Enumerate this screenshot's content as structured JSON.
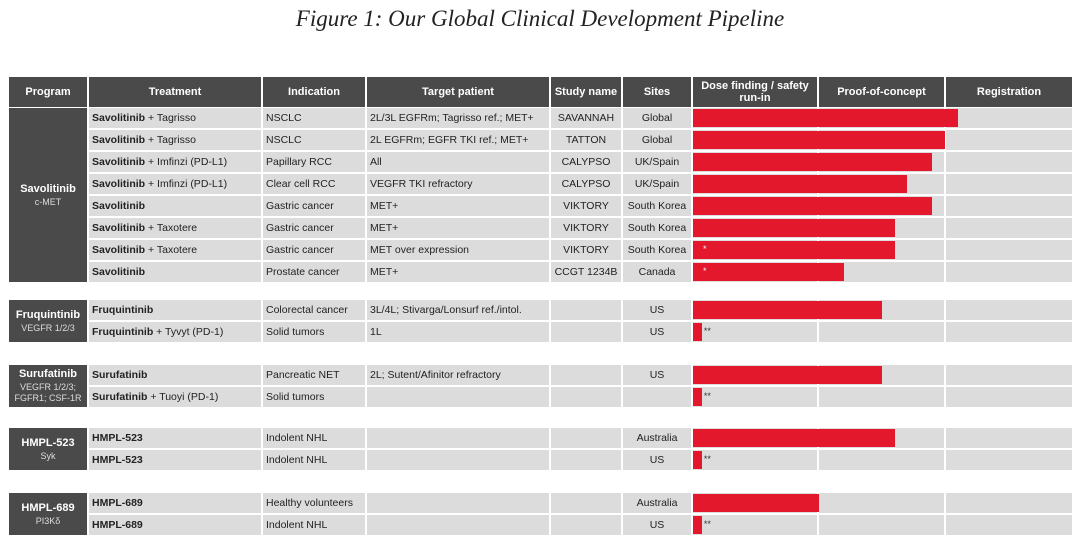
{
  "title": "Figure 1: Our Global Clinical Development Pipeline",
  "chart_data": {
    "type": "table",
    "columns": [
      "Program",
      "Treatment",
      "Indication",
      "Target patient",
      "Study name",
      "Sites",
      "Dose finding / safety run-in",
      "Proof-of-concept",
      "Registration"
    ],
    "phases": [
      "Dose finding / safety run-in",
      "Proof-of-concept",
      "Registration"
    ],
    "bar_color": "#e3182d",
    "groups": [
      {
        "program": "Savolitinib",
        "target": "c-MET",
        "rows": [
          {
            "drug": "Savolitinib",
            "combo": " + Tagrisso",
            "indication": "NSCLC",
            "patient": "2L/3L EGFRm; Tagrisso ref.; MET+",
            "study": "SAVANNAH",
            "sites": "Global",
            "progress": 2.1,
            "mark": ""
          },
          {
            "drug": "Savolitinib",
            "combo": " + Tagrisso",
            "indication": "NSCLC",
            "patient": "2L EGFRm; EGFR TKI ref.; MET+",
            "study": "TATTON",
            "sites": "Global",
            "progress": 2.0,
            "mark": ""
          },
          {
            "drug": "Savolitinib",
            "combo": " + Imfinzi (PD-L1)",
            "indication": "Papillary RCC",
            "patient": "All",
            "study": "CALYPSO",
            "sites": "UK/Spain",
            "progress": 1.9,
            "mark": ""
          },
          {
            "drug": "Savolitinib",
            "combo": " + Imfinzi (PD-L1)",
            "indication": "Clear cell RCC",
            "patient": "VEGFR TKI refractory",
            "study": "CALYPSO",
            "sites": "UK/Spain",
            "progress": 1.7,
            "mark": ""
          },
          {
            "drug": "Savolitinib",
            "combo": "",
            "indication": "Gastric cancer",
            "patient": "MET+",
            "study": "VIKTORY",
            "sites": "South Korea",
            "progress": 1.9,
            "mark": ""
          },
          {
            "drug": "Savolitinib",
            "combo": " + Taxotere",
            "indication": "Gastric cancer",
            "patient": "MET+",
            "study": "VIKTORY",
            "sites": "South Korea",
            "progress": 1.6,
            "mark": ""
          },
          {
            "drug": "Savolitinib",
            "combo": " + Taxotere",
            "indication": "Gastric cancer",
            "patient": "MET over expression",
            "study": "VIKTORY",
            "sites": "South Korea",
            "progress": 1.6,
            "mark": "*"
          },
          {
            "drug": "Savolitinib",
            "combo": "",
            "indication": "Prostate cancer",
            "patient": "MET+",
            "study": "CCGT 1234B",
            "sites": "Canada",
            "progress": 1.2,
            "mark": "*"
          }
        ]
      },
      {
        "program": "Fruquintinib",
        "target": "VEGFR 1/2/3",
        "rows": [
          {
            "drug": "Fruquintinib",
            "combo": "",
            "indication": "Colorectal cancer",
            "patient": "3L/4L; Stivarga/Lonsurf ref./intol.",
            "study": "",
            "sites": "US",
            "progress": 1.5,
            "mark": ""
          },
          {
            "drug": "Fruquintinib",
            "combo": " + Tyvyt (PD-1)",
            "indication": "Solid tumors",
            "patient": "1L",
            "study": "",
            "sites": "US",
            "progress": 0.07,
            "mark": "**"
          }
        ]
      },
      {
        "program": "Surufatinib",
        "target": "VEGFR 1/2/3; FGFR1; CSF-1R",
        "rows": [
          {
            "drug": "Surufatinib",
            "combo": "",
            "indication": "Pancreatic NET",
            "patient": "2L; Sutent/Afinitor refractory",
            "study": "",
            "sites": "US",
            "progress": 1.5,
            "mark": ""
          },
          {
            "drug": "Surufatinib",
            "combo": " + Tuoyi (PD-1)",
            "indication": "Solid tumors",
            "patient": "",
            "study": "",
            "sites": "",
            "progress": 0.07,
            "mark": "**"
          }
        ]
      },
      {
        "program": "HMPL-523",
        "target": "Syk",
        "rows": [
          {
            "drug": "HMPL-523",
            "combo": "",
            "indication": "Indolent NHL",
            "patient": "",
            "study": "",
            "sites": "Australia",
            "progress": 1.6,
            "mark": ""
          },
          {
            "drug": "HMPL-523",
            "combo": "",
            "indication": "Indolent NHL",
            "patient": "",
            "study": "",
            "sites": "US",
            "progress": 0.07,
            "mark": "**"
          }
        ]
      },
      {
        "program": "HMPL-689",
        "target": "PI3Kδ",
        "rows": [
          {
            "drug": "HMPL-689",
            "combo": "",
            "indication": "Healthy volunteers",
            "patient": "",
            "study": "",
            "sites": "Australia",
            "progress": 1.0,
            "mark": ""
          },
          {
            "drug": "HMPL-689",
            "combo": "",
            "indication": "Indolent NHL",
            "patient": "",
            "study": "",
            "sites": "US",
            "progress": 0.07,
            "mark": "**"
          }
        ]
      }
    ]
  }
}
